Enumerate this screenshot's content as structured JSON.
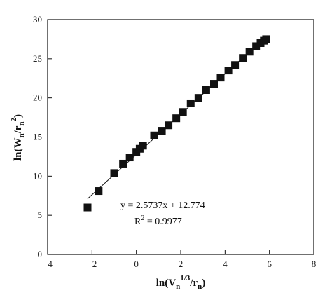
{
  "chart_data": {
    "type": "scatter",
    "xlabel": {
      "main": "ln(V",
      "sub1": "n",
      "sup": "1/3",
      "mid": "/r",
      "sub2": "n",
      "end": ")"
    },
    "ylabel": {
      "main": "ln(W",
      "sub1": "n",
      "mid": "/r",
      "sub2": "n",
      "sup": "2",
      "end": ")"
    },
    "xlim": [
      -4,
      8
    ],
    "ylim": [
      0,
      30
    ],
    "xticks": [
      -4,
      -2,
      0,
      2,
      4,
      6,
      8
    ],
    "yticks": [
      0,
      5,
      10,
      15,
      20,
      25,
      30
    ],
    "xtick_labels": [
      "−4",
      "−2",
      "0",
      "2",
      "4",
      "6",
      "8"
    ],
    "ytick_labels": [
      "0",
      "5",
      "10",
      "15",
      "20",
      "25",
      "30"
    ],
    "grid": false,
    "points": [
      {
        "x": -2.2,
        "y": 6.0
      },
      {
        "x": -1.7,
        "y": 8.1
      },
      {
        "x": -1.0,
        "y": 10.4
      },
      {
        "x": -0.6,
        "y": 11.6
      },
      {
        "x": -0.3,
        "y": 12.4
      },
      {
        "x": 0.0,
        "y": 13.1
      },
      {
        "x": 0.15,
        "y": 13.5
      },
      {
        "x": 0.3,
        "y": 13.9
      },
      {
        "x": 0.8,
        "y": 15.2
      },
      {
        "x": 1.15,
        "y": 15.8
      },
      {
        "x": 1.45,
        "y": 16.5
      },
      {
        "x": 1.8,
        "y": 17.4
      },
      {
        "x": 2.1,
        "y": 18.2
      },
      {
        "x": 2.45,
        "y": 19.3
      },
      {
        "x": 2.8,
        "y": 20.0
      },
      {
        "x": 3.15,
        "y": 21.0
      },
      {
        "x": 3.5,
        "y": 21.8
      },
      {
        "x": 3.8,
        "y": 22.6
      },
      {
        "x": 4.15,
        "y": 23.5
      },
      {
        "x": 4.45,
        "y": 24.2
      },
      {
        "x": 4.8,
        "y": 25.1
      },
      {
        "x": 5.1,
        "y": 25.9
      },
      {
        "x": 5.4,
        "y": 26.6
      },
      {
        "x": 5.6,
        "y": 27.0
      },
      {
        "x": 5.75,
        "y": 27.3
      },
      {
        "x": 5.85,
        "y": 27.5
      }
    ],
    "fit": {
      "slope": 2.5737,
      "intercept": 12.774,
      "x_range": [
        -2.2,
        5.9
      ]
    },
    "annotations": {
      "equation": "y = 2.5737x + 12.774",
      "r2_base": "R",
      "r2_sup": "2",
      "r2_value": " = 0.9977"
    }
  }
}
